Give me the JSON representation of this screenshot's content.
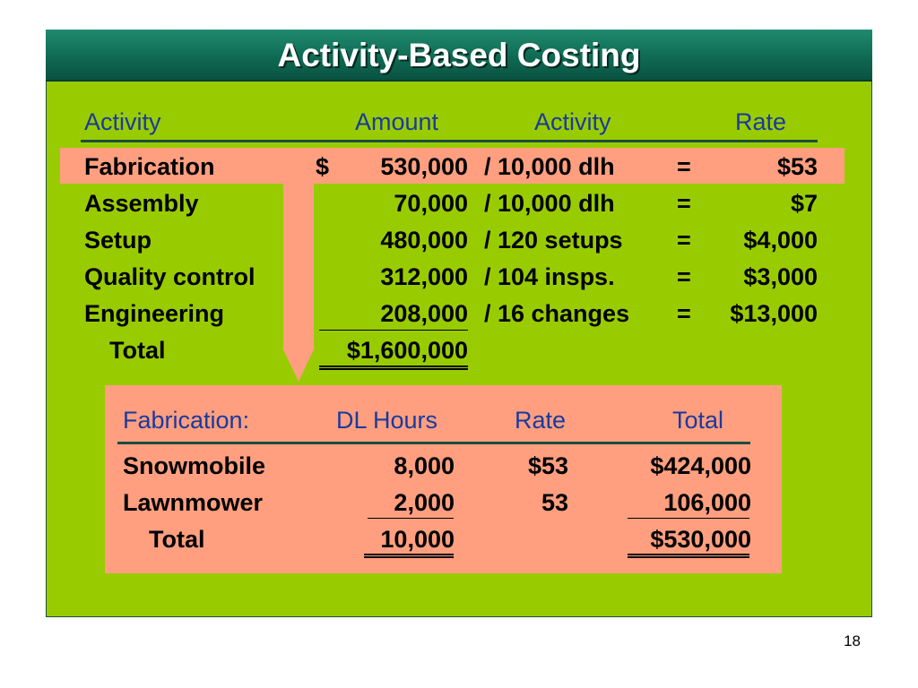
{
  "title": "Activity-Based Costing",
  "top_table": {
    "headers": {
      "activity": "Activity",
      "amount": "Amount",
      "activity2": "Activity",
      "rate": "Rate"
    },
    "rows": [
      {
        "name": "Fabrication",
        "dollar": "$",
        "amount": "530,000",
        "divisor": "/ 10,000 dlh",
        "eq": "=",
        "rate": "$53"
      },
      {
        "name": "Assembly",
        "dollar": "",
        "amount": "70,000",
        "divisor": "/ 10,000 dlh",
        "eq": "=",
        "rate": "$7"
      },
      {
        "name": "Setup",
        "dollar": "",
        "amount": "480,000",
        "divisor": "/ 120 setups",
        "eq": "=",
        "rate": "$4,000"
      },
      {
        "name": "Quality control",
        "dollar": "",
        "amount": "312,000",
        "divisor": "/ 104 insps.",
        "eq": "=",
        "rate": "$3,000"
      },
      {
        "name": "Engineering",
        "dollar": "",
        "amount": "208,000",
        "divisor": "/ 16 changes",
        "eq": "=",
        "rate": "$13,000"
      }
    ],
    "total_label": "Total",
    "total_amount": "$1,600,000"
  },
  "bottom_table": {
    "headers": {
      "label": "Fabrication:",
      "hours": "DL Hours",
      "rate": "Rate",
      "total": "Total"
    },
    "rows": [
      {
        "name": "Snowmobile",
        "hours": "8,000",
        "rate": "$53",
        "total": "$424,000"
      },
      {
        "name": "Lawnmower",
        "hours": "2,000",
        "rate": "53",
        "total": "106,000"
      }
    ],
    "total_label": "Total",
    "total_hours": "10,000",
    "total_amount": "$530,000"
  },
  "page_number": "18",
  "colors": {
    "background": "#99cc00",
    "title_bar": "#0f6a54",
    "highlight": "#ff9f80",
    "header_text": "#1a3a9e"
  }
}
